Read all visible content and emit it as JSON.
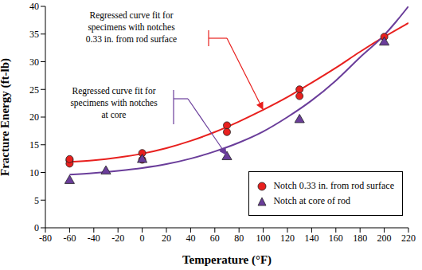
{
  "chart_data": {
    "type": "scatter",
    "x_label": "Temperature (°F)",
    "y_label": "Fracture Energy (ft-lb)",
    "xlim": [
      -80,
      220
    ],
    "xticks": [
      -80,
      -60,
      -40,
      -20,
      0,
      20,
      40,
      60,
      80,
      100,
      120,
      140,
      160,
      180,
      200,
      220
    ],
    "ylim": [
      0,
      40
    ],
    "yticks": [
      0,
      5,
      10,
      15,
      20,
      25,
      30,
      35,
      40
    ],
    "grid": false,
    "legend": "lower right",
    "series": [
      {
        "name": "Notch 0.33 in. from rod surface",
        "type": "scatter",
        "marker": "circle",
        "color": "#e8201e",
        "x": [
          -60,
          -60,
          -60,
          0,
          0,
          70,
          70,
          130,
          130,
          200
        ],
        "values": [
          12.2,
          11.6,
          12.4,
          13.5,
          12.3,
          18.5,
          17.3,
          25,
          23.8,
          34.5
        ]
      },
      {
        "name": "Notch at core of rod",
        "type": "scatter",
        "marker": "triangle",
        "color": "#6a3d9a",
        "x": [
          -60,
          -30,
          0,
          70,
          130,
          200
        ],
        "values": [
          8.5,
          10.2,
          12.3,
          12.8,
          19.5,
          33.5
        ]
      },
      {
        "type": "line",
        "line_style": "solid",
        "color": "#e8201e",
        "label": [
          "Regressed curve fit for",
          "specimens with notches",
          "0.33 in. from rod surface"
        ],
        "x": [
          -60,
          -40,
          -20,
          0,
          20,
          40,
          60,
          80,
          100,
          120,
          140,
          160,
          180,
          200,
          220
        ],
        "values": [
          11.9,
          12.2,
          12.7,
          13.4,
          14.4,
          15.7,
          17.3,
          19.2,
          21.3,
          23.6,
          26.2,
          28.9,
          31.8,
          34.5,
          37
        ]
      },
      {
        "type": "line",
        "line_style": "solid",
        "color": "#6a3d9a",
        "label": [
          "Regressed curve fit for",
          "specimens with notches",
          "at core"
        ],
        "x": [
          -60,
          -40,
          -20,
          0,
          20,
          40,
          60,
          80,
          100,
          120,
          140,
          160,
          180,
          200,
          210,
          220
        ],
        "values": [
          9.6,
          9.9,
          10.3,
          10.8,
          11.5,
          12.5,
          13.8,
          15.4,
          17.4,
          20,
          23,
          26.6,
          30.8,
          34.8,
          37.3,
          40
        ]
      }
    ]
  }
}
